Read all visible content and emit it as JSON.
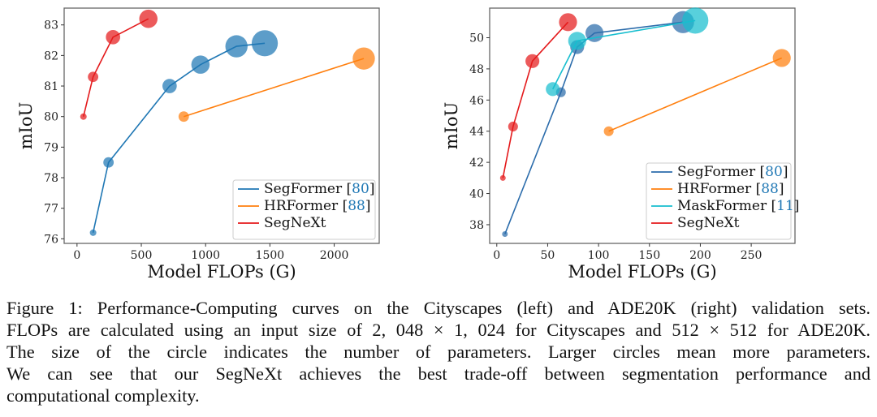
{
  "chart_data": [
    {
      "type": "scatter",
      "mode": "lines+markers",
      "xlabel": "Model FLOPs (G)",
      "ylabel": "mIoU",
      "xlim": [
        -100,
        2350
      ],
      "ylim": [
        75.85,
        83.55
      ],
      "xticks": [
        0,
        500,
        1000,
        1500,
        2000
      ],
      "yticks": [
        76,
        77,
        78,
        79,
        80,
        81,
        82,
        83
      ],
      "legend_position": "lower-right",
      "grid": false,
      "series": [
        {
          "name": "SegFormer",
          "ref": "80",
          "color": "#1f77b4",
          "x": [
            125,
            245,
            720,
            960,
            1240,
            1460
          ],
          "y": [
            76.2,
            78.5,
            81.0,
            81.7,
            82.3,
            82.4
          ],
          "marker_size": [
            1,
            2,
            3,
            4,
            5,
            6
          ]
        },
        {
          "name": "HRFormer",
          "ref": "88",
          "color": "#ff7f0e",
          "x": [
            830,
            2230
          ],
          "y": [
            80.0,
            81.9
          ],
          "marker_size": [
            2,
            5
          ]
        },
        {
          "name": "SegNeXt",
          "ref": "",
          "color": "#e41a1c",
          "x": [
            50,
            125,
            280,
            555
          ],
          "y": [
            80.0,
            81.3,
            82.6,
            83.2
          ],
          "marker_size": [
            1,
            2,
            3,
            4
          ]
        }
      ]
    },
    {
      "type": "scatter",
      "mode": "lines+markers",
      "xlabel": "Model FLOPs (G)",
      "ylabel": "mIoU",
      "xlim": [
        -7,
        293
      ],
      "ylim": [
        36.8,
        51.9
      ],
      "xticks": [
        0,
        50,
        100,
        150,
        200,
        250
      ],
      "yticks": [
        38,
        40,
        42,
        44,
        46,
        48,
        50
      ],
      "legend_position": "lower-right",
      "grid": false,
      "series": [
        {
          "name": "SegFormer",
          "ref": "80",
          "color": "#2b6cab",
          "x": [
            8,
            63,
            79,
            96,
            183
          ],
          "y": [
            37.4,
            46.5,
            49.4,
            50.3,
            51.0
          ],
          "marker_size": [
            1,
            2,
            3,
            4,
            5
          ]
        },
        {
          "name": "HRFormer",
          "ref": "88",
          "color": "#ff7f0e",
          "x": [
            110,
            280
          ],
          "y": [
            44.0,
            48.7
          ],
          "marker_size": [
            2,
            4
          ]
        },
        {
          "name": "MaskFormer",
          "ref": "11",
          "color": "#17becf",
          "x": [
            55,
            79,
            195
          ],
          "y": [
            46.7,
            49.8,
            51.1
          ],
          "marker_size": [
            3,
            4,
            6
          ]
        },
        {
          "name": "SegNeXt",
          "ref": "",
          "color": "#e41a1c",
          "x": [
            6,
            16,
            35,
            70
          ],
          "y": [
            41.0,
            44.3,
            48.5,
            51.0
          ],
          "marker_size": [
            1,
            2,
            3,
            4
          ]
        }
      ]
    }
  ],
  "caption": {
    "lines": [
      "Figure 1: Performance-Computing curves on the Cityscapes (left) and ADE20K (right) validation sets.",
      "FLOPs are calculated using an input size of 2, 048 × 1, 024 for Cityscapes and 512 × 512 for ADE20K.",
      "The size of the circle indicates the number of parameters. Larger circles mean more parameters.",
      "We can see that our SegNeXt achieves the best trade-off between segmentation performance and",
      "computational complexity."
    ]
  }
}
